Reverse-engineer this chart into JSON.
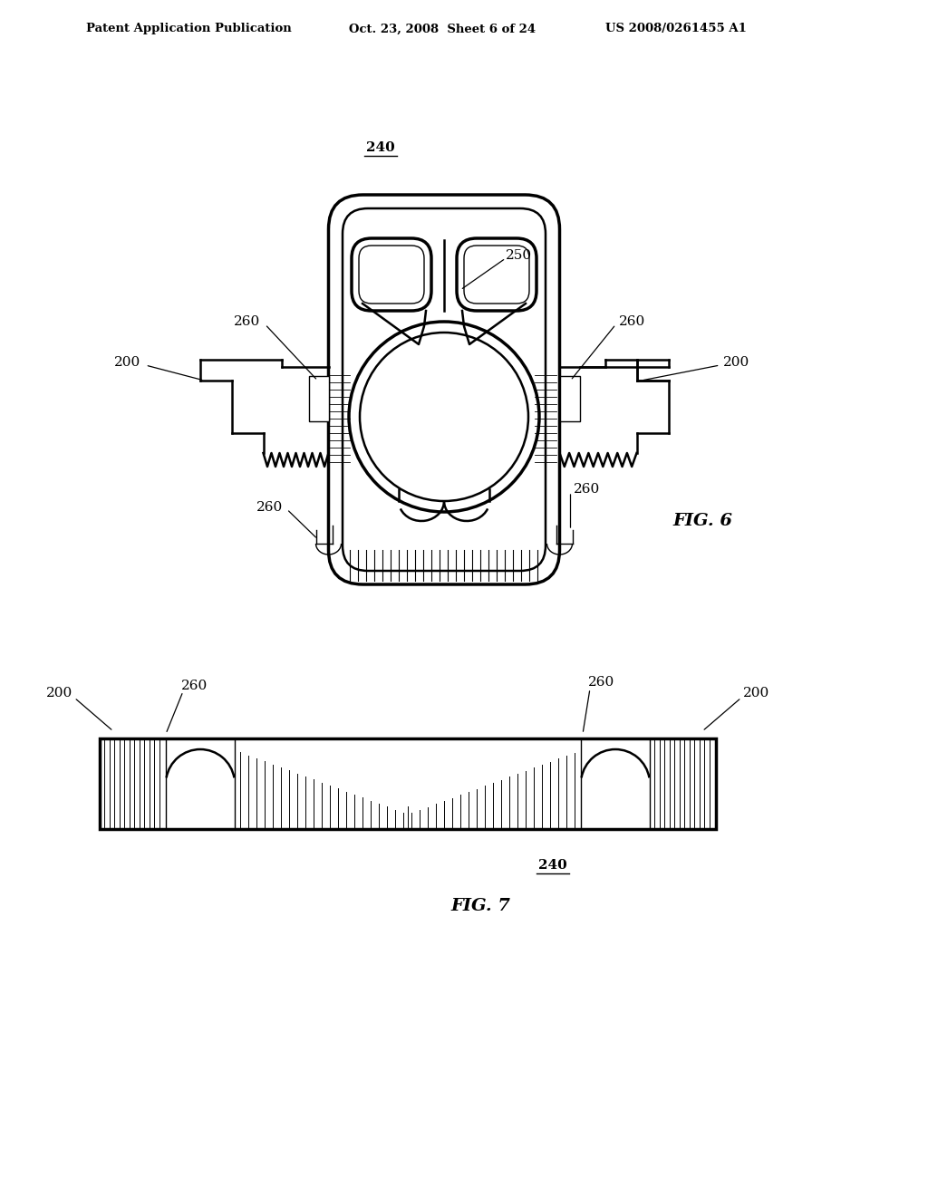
{
  "bg_color": "#ffffff",
  "line_color": "#000000",
  "header_left": "Patent Application Publication",
  "header_mid": "Oct. 23, 2008  Sheet 6 of 24",
  "header_right": "US 2008/0261455 A1",
  "fig6_label": "FIG. 6",
  "fig7_label": "FIG. 7",
  "label_240_top": "240",
  "label_240_bot": "240",
  "label_250": "250",
  "label_200": "200",
  "label_260": "260"
}
